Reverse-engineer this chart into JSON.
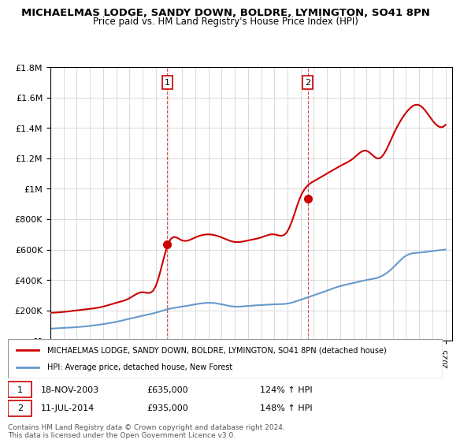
{
  "title": "MICHAELMAS LODGE, SANDY DOWN, BOLDRE, LYMINGTON, SO41 8PN",
  "subtitle": "Price paid vs. HM Land Registry's House Price Index (HPI)",
  "red_label": "MICHAELMAS LODGE, SANDY DOWN, BOLDRE, LYMINGTON, SO41 8PN (detached house)",
  "blue_label": "HPI: Average price, detached house, New Forest",
  "sale1_date": "18-NOV-2003",
  "sale1_price": 635000,
  "sale1_hpi": "124% ↑ HPI",
  "sale1_x": 2003.88,
  "sale2_date": "11-JUL-2014",
  "sale2_price": 935000,
  "sale2_hpi": "148% ↑ HPI",
  "sale2_x": 2014.53,
  "ylim": [
    0,
    1800000
  ],
  "xlim": [
    1995,
    2025.5
  ],
  "background": "#ffffff",
  "footnote": "Contains HM Land Registry data © Crown copyright and database right 2024.\nThis data is licensed under the Open Government Licence v3.0.",
  "red_color": "#cc0000",
  "blue_color": "#6699cc",
  "vline_color": "#cc0000",
  "red_years": [
    1995,
    1996,
    1997,
    1998,
    1999,
    2000,
    2001,
    2002,
    2003,
    2004,
    2005,
    2006,
    2007,
    2008,
    2009,
    2010,
    2011,
    2012,
    2013,
    2014,
    2015,
    2016,
    2017,
    2018,
    2019,
    2020,
    2021,
    2022,
    2023,
    2024,
    2025
  ],
  "red_values": [
    185000,
    190000,
    200000,
    210000,
    225000,
    250000,
    280000,
    320000,
    360000,
    650000,
    660000,
    680000,
    700000,
    680000,
    650000,
    660000,
    680000,
    700000,
    720000,
    950000,
    1050000,
    1100000,
    1150000,
    1200000,
    1250000,
    1200000,
    1350000,
    1500000,
    1550000,
    1450000,
    1420000
  ],
  "blue_years": [
    1995,
    1996,
    1997,
    1998,
    1999,
    2000,
    2001,
    2002,
    2003,
    2004,
    2005,
    2006,
    2007,
    2008,
    2009,
    2010,
    2011,
    2012,
    2013,
    2014,
    2015,
    2016,
    2017,
    2018,
    2019,
    2020,
    2021,
    2022,
    2023,
    2024,
    2025
  ],
  "blue_values": [
    80000,
    85000,
    90000,
    98000,
    110000,
    125000,
    145000,
    165000,
    185000,
    210000,
    225000,
    240000,
    250000,
    240000,
    225000,
    230000,
    235000,
    240000,
    245000,
    270000,
    300000,
    330000,
    360000,
    380000,
    400000,
    420000,
    480000,
    560000,
    580000,
    590000,
    600000
  ]
}
